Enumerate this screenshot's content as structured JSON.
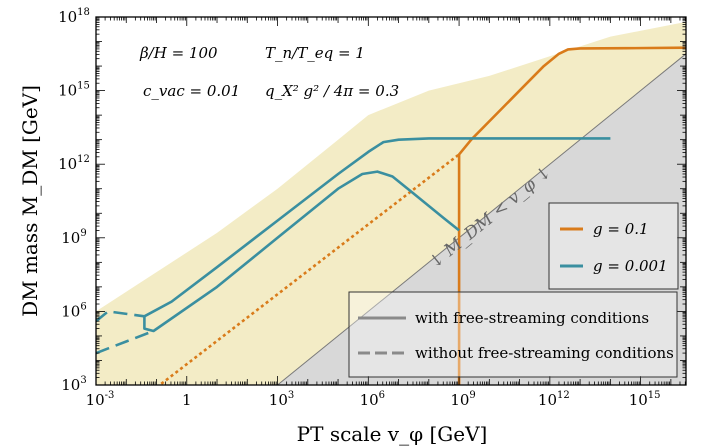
{
  "chart_data": {
    "type": "line",
    "xlabel": "PT scale v_φ [GeV]",
    "ylabel": "DM mass M_DM [GeV]",
    "xscale": "log",
    "yscale": "log",
    "xlim_log10": [
      -3,
      16.5
    ],
    "ylim_log10": [
      3,
      18
    ],
    "x_ticks": [
      {
        "exp": -3,
        "label": "10",
        "sup": "-3"
      },
      {
        "exp": 0,
        "label": "1",
        "sup": ""
      },
      {
        "exp": 3,
        "label": "10",
        "sup": "3"
      },
      {
        "exp": 6,
        "label": "10",
        "sup": "6"
      },
      {
        "exp": 9,
        "label": "10",
        "sup": "9"
      },
      {
        "exp": 12,
        "label": "10",
        "sup": "12"
      },
      {
        "exp": 15,
        "label": "10",
        "sup": "15"
      }
    ],
    "y_ticks": [
      {
        "exp": 3,
        "label": "10",
        "sup": "3"
      },
      {
        "exp": 6,
        "label": "10",
        "sup": "6"
      },
      {
        "exp": 9,
        "label": "10",
        "sup": "9"
      },
      {
        "exp": 12,
        "label": "10",
        "sup": "12"
      },
      {
        "exp": 15,
        "label": "10",
        "sup": "15"
      },
      {
        "exp": 18,
        "label": "10",
        "sup": "18"
      }
    ],
    "params": {
      "beta_over_H": "β/H = 100",
      "Tn_over_Teq": "T_n/T_eq = 1",
      "c_vac": "c_vac = 0.01",
      "coupling": "q_X² g² / 4π = 0.3"
    },
    "excluded_region_label": "M_DM < v_φ",
    "colors": {
      "g01": "#d97b1a",
      "g0001": "#3a8fa0",
      "allowed_fill": "#f3ecc6",
      "excluded_fill": "#d8d8d8",
      "legend_line": "#8a8a8a"
    },
    "legend_color": [
      {
        "name": "g = 0.1",
        "color": "#d97b1a"
      },
      {
        "name": "g = 0.001",
        "color": "#3a8fa0"
      }
    ],
    "legend_style": [
      {
        "name": "with free-streaming conditions",
        "style": "solid"
      },
      {
        "name": "without free-streaming conditions",
        "style": "dashed"
      }
    ],
    "series": [
      {
        "name": "g = 0.1",
        "style": "solid",
        "points_log10": [
          [
            9.0,
            3.0
          ],
          [
            9.0,
            12.4
          ],
          [
            9.4,
            13.0
          ],
          [
            10.2,
            14.0
          ],
          [
            11.0,
            15.0
          ],
          [
            11.8,
            16.0
          ],
          [
            12.3,
            16.5
          ],
          [
            12.6,
            16.68
          ],
          [
            13.0,
            16.72
          ],
          [
            14.5,
            16.73
          ],
          [
            16.5,
            16.75
          ]
        ]
      },
      {
        "name": "g = 0.1",
        "style": "dotted",
        "points_log10": [
          [
            -1.0,
            2.9
          ],
          [
            9.0,
            12.4
          ]
        ]
      },
      {
        "name": "g = 0.001",
        "style": "solid",
        "points_log10": [
          [
            -1.4,
            5.8
          ],
          [
            -0.5,
            6.4
          ],
          [
            1.0,
            7.8
          ],
          [
            3.0,
            9.7
          ],
          [
            5.0,
            11.6
          ],
          [
            6.0,
            12.5
          ],
          [
            6.5,
            12.9
          ],
          [
            7.0,
            13.0
          ],
          [
            8.0,
            13.05
          ],
          [
            10.0,
            13.05
          ],
          [
            12.0,
            13.05
          ],
          [
            14.0,
            13.05
          ]
        ]
      },
      {
        "name": "g = 0.001",
        "style": "solid",
        "points_log10": [
          [
            -1.4,
            5.8
          ],
          [
            -1.4,
            5.3
          ],
          [
            -1.1,
            5.2
          ],
          [
            1.0,
            7.0
          ],
          [
            3.0,
            9.0
          ],
          [
            5.0,
            11.0
          ],
          [
            5.8,
            11.6
          ],
          [
            6.3,
            11.7
          ],
          [
            6.8,
            11.5
          ],
          [
            7.5,
            10.8
          ],
          [
            8.5,
            9.8
          ],
          [
            9.0,
            9.3
          ]
        ]
      },
      {
        "name": "g = 0.001",
        "style": "dashed",
        "points_log10": [
          [
            -3.0,
            5.6
          ],
          [
            -2.6,
            6.0
          ],
          [
            -1.4,
            5.8
          ]
        ]
      },
      {
        "name": "g = 0.001",
        "style": "dashed",
        "points_log10": [
          [
            -3.0,
            4.3
          ],
          [
            -1.1,
            5.2
          ]
        ]
      }
    ],
    "allowed_region_upper_log10": [
      [
        -3.0,
        6.0
      ],
      [
        1.0,
        9.2
      ],
      [
        3.0,
        11.0
      ],
      [
        5.0,
        13.0
      ],
      [
        6.0,
        14.0
      ],
      [
        8.0,
        15.0
      ],
      [
        10.0,
        15.6
      ],
      [
        12.0,
        16.4
      ],
      [
        14.0,
        17.2
      ],
      [
        16.5,
        17.8
      ]
    ],
    "excluded_region_boundary_log10": [
      [
        3.0,
        3.0
      ],
      [
        16.5,
        16.5
      ]
    ]
  }
}
